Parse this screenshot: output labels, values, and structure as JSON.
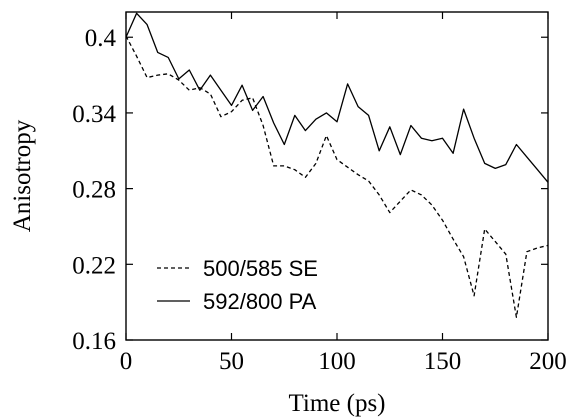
{
  "chart_data": {
    "type": "line",
    "xlabel": "Time (ps)",
    "ylabel": "Anisotropy",
    "xlim": [
      0,
      200
    ],
    "ylim": [
      0.16,
      0.42
    ],
    "xticks": [
      0,
      50,
      100,
      150,
      200
    ],
    "xtick_labels": [
      "0",
      "50",
      "100",
      "150",
      "200"
    ],
    "yticks": [
      0.16,
      0.22,
      0.28,
      0.34,
      0.4
    ],
    "ytick_labels": [
      "0.16",
      "0.22",
      "0.28",
      "0.34",
      "0.4"
    ],
    "grid": false,
    "legend_position": "bottom-left",
    "series": [
      {
        "name": "500/585 SE",
        "style": "dashed",
        "color": "#000000",
        "x": [
          0,
          5,
          10,
          15,
          20,
          25,
          30,
          35,
          40,
          45,
          50,
          55,
          60,
          65,
          70,
          75,
          80,
          85,
          90,
          95,
          100,
          105,
          110,
          115,
          120,
          125,
          130,
          135,
          140,
          145,
          150,
          155,
          160,
          165,
          170,
          175,
          180,
          185,
          190,
          195,
          200
        ],
        "values": [
          0.401,
          0.385,
          0.368,
          0.37,
          0.371,
          0.366,
          0.358,
          0.36,
          0.355,
          0.337,
          0.341,
          0.35,
          0.352,
          0.33,
          0.298,
          0.298,
          0.295,
          0.289,
          0.3,
          0.322,
          0.303,
          0.297,
          0.291,
          0.286,
          0.275,
          0.261,
          0.27,
          0.279,
          0.275,
          0.267,
          0.255,
          0.24,
          0.226,
          0.195,
          0.248,
          0.238,
          0.228,
          0.178,
          0.23,
          0.233,
          0.235
        ]
      },
      {
        "name": "592/800 PA",
        "style": "solid",
        "color": "#000000",
        "x": [
          0,
          5,
          10,
          15,
          20,
          25,
          30,
          35,
          40,
          45,
          50,
          55,
          60,
          65,
          70,
          75,
          80,
          85,
          90,
          95,
          100,
          105,
          110,
          115,
          120,
          125,
          130,
          135,
          140,
          145,
          150,
          155,
          160,
          165,
          170,
          175,
          180,
          185,
          190,
          195,
          200
        ],
        "values": [
          0.4,
          0.419,
          0.41,
          0.388,
          0.384,
          0.367,
          0.374,
          0.358,
          0.37,
          0.358,
          0.346,
          0.362,
          0.342,
          0.353,
          0.332,
          0.315,
          0.338,
          0.326,
          0.335,
          0.34,
          0.333,
          0.363,
          0.345,
          0.338,
          0.31,
          0.329,
          0.307,
          0.33,
          0.32,
          0.318,
          0.32,
          0.308,
          0.343,
          0.32,
          0.3,
          0.296,
          0.299,
          0.315,
          0.305,
          0.295,
          0.285
        ]
      }
    ]
  }
}
